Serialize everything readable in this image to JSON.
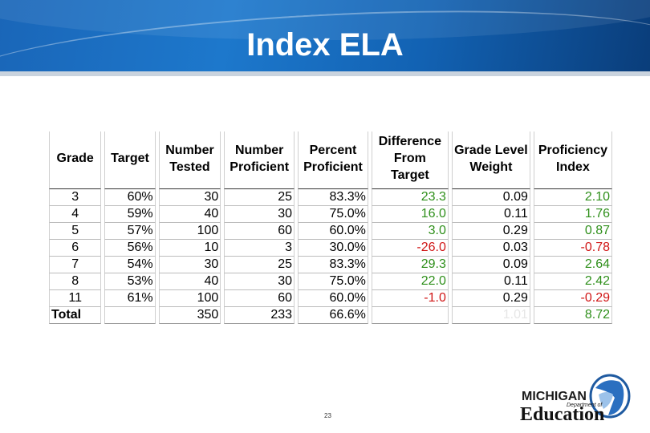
{
  "title": "Index ELA",
  "table": {
    "headers": [
      "Grade",
      "Target",
      "Number Tested",
      "Number Proficient",
      "Percent Proficient",
      "Difference From Target",
      "Grade Level Weight",
      "Proficiency Index"
    ],
    "rows": [
      {
        "grade": "3",
        "target": "60%",
        "tested": "30",
        "proficient": "25",
        "percent": "83.3%",
        "difference": "23.3",
        "diff_sign": "pos",
        "weight": "0.09",
        "index": "2.10",
        "index_sign": "pos"
      },
      {
        "grade": "4",
        "target": "59%",
        "tested": "40",
        "proficient": "30",
        "percent": "75.0%",
        "difference": "16.0",
        "diff_sign": "pos",
        "weight": "0.11",
        "index": "1.76",
        "index_sign": "pos"
      },
      {
        "grade": "5",
        "target": "57%",
        "tested": "100",
        "proficient": "60",
        "percent": "60.0%",
        "difference": "3.0",
        "diff_sign": "pos",
        "weight": "0.29",
        "index": "0.87",
        "index_sign": "pos"
      },
      {
        "grade": "6",
        "target": "56%",
        "tested": "10",
        "proficient": "3",
        "percent": "30.0%",
        "difference": "-26.0",
        "diff_sign": "neg",
        "weight": "0.03",
        "index": "-0.78",
        "index_sign": "neg"
      },
      {
        "grade": "7",
        "target": "54%",
        "tested": "30",
        "proficient": "25",
        "percent": "83.3%",
        "difference": "29.3",
        "diff_sign": "pos",
        "weight": "0.09",
        "index": "2.64",
        "index_sign": "pos"
      },
      {
        "grade": "8",
        "target": "53%",
        "tested": "40",
        "proficient": "30",
        "percent": "75.0%",
        "difference": "22.0",
        "diff_sign": "pos",
        "weight": "0.11",
        "index": "2.42",
        "index_sign": "pos"
      },
      {
        "grade": "11",
        "target": "61%",
        "tested": "100",
        "proficient": "60",
        "percent": "60.0%",
        "difference": "-1.0",
        "diff_sign": "neg",
        "weight": "0.29",
        "index": "-0.29",
        "index_sign": "neg"
      }
    ],
    "total": {
      "label": "Total",
      "target": "",
      "tested": "350",
      "proficient": "233",
      "percent": "66.6%",
      "difference": "",
      "weight": "1.01",
      "index": "8.72"
    }
  },
  "colors": {
    "positive": "#2e8f1a",
    "negative": "#d01515",
    "banner": "#1d78cc"
  },
  "page_number": "23",
  "logo": {
    "michigan": "MICHIGAN",
    "department": "Department of",
    "education": "Education"
  }
}
